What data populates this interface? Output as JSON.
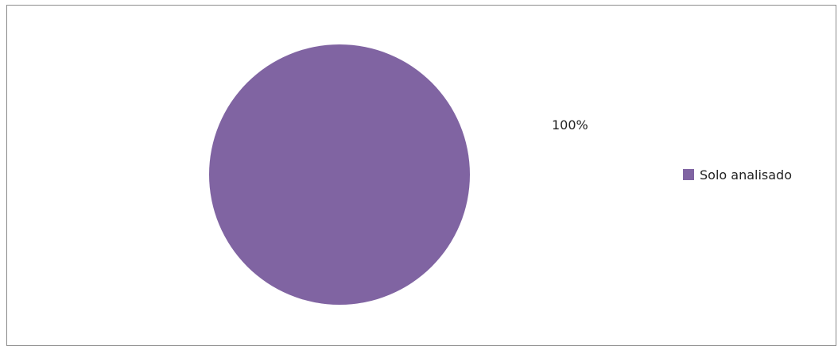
{
  "chart_data": {
    "type": "pie",
    "categories": [
      "Solo analisado"
    ],
    "values": [
      100
    ],
    "data_labels": [
      "100%"
    ],
    "colors": [
      "#8064a2"
    ],
    "legend_position": "right",
    "title": ""
  }
}
